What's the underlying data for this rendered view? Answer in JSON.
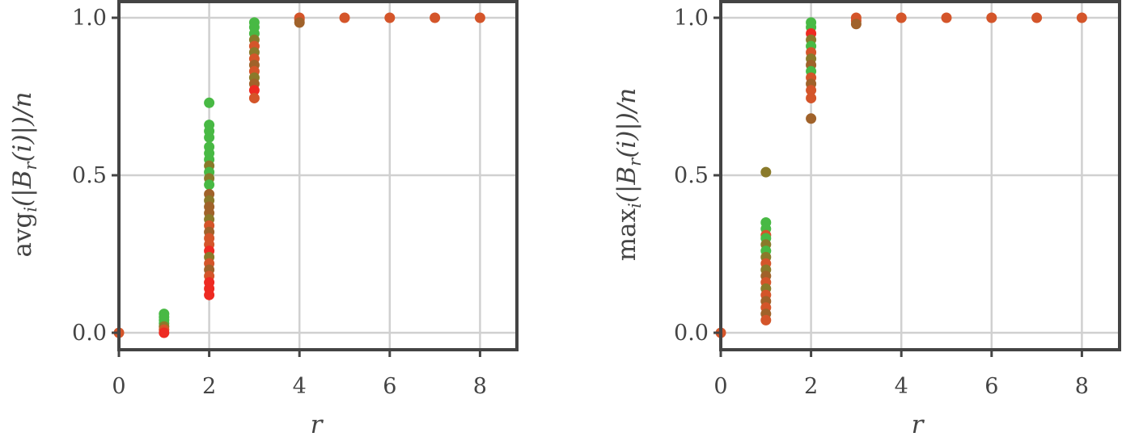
{
  "chart_data": [
    {
      "type": "scatter",
      "xlabel": "r",
      "ylabel": "avg_i(|B_r(i)|)/n",
      "ylabel_parts": {
        "pre": "avg",
        "sub1": "i",
        "mid": "(|B",
        "sub2": "r",
        "post": "(i)|)/n"
      },
      "xticks": [
        "0",
        "2",
        "4",
        "6",
        "8"
      ],
      "yticks": [
        "0.0",
        "0.5",
        "1.0"
      ],
      "xlim": [
        0,
        8.85
      ],
      "ylim": [
        -0.055,
        1.045
      ],
      "grid": true,
      "colors": {
        "green": "#48b944",
        "olive": "#8a7a2a",
        "brown": "#a0622a",
        "orange": "#d4552a",
        "red": "#ee2a22",
        "axis": "#444444",
        "grid": "#d0d0d0"
      },
      "points": [
        {
          "x": 0,
          "y": 0.0,
          "c": "orange"
        },
        {
          "x": 1,
          "y": 0.06,
          "c": "green"
        },
        {
          "x": 1,
          "y": 0.05,
          "c": "green"
        },
        {
          "x": 1,
          "y": 0.04,
          "c": "green"
        },
        {
          "x": 1,
          "y": 0.03,
          "c": "green"
        },
        {
          "x": 1,
          "y": 0.02,
          "c": "olive"
        },
        {
          "x": 1,
          "y": 0.01,
          "c": "orange"
        },
        {
          "x": 1,
          "y": 0.0,
          "c": "red"
        },
        {
          "x": 2,
          "y": 0.73,
          "c": "green"
        },
        {
          "x": 2,
          "y": 0.66,
          "c": "green"
        },
        {
          "x": 2,
          "y": 0.64,
          "c": "green"
        },
        {
          "x": 2,
          "y": 0.62,
          "c": "green"
        },
        {
          "x": 2,
          "y": 0.59,
          "c": "green"
        },
        {
          "x": 2,
          "y": 0.57,
          "c": "green"
        },
        {
          "x": 2,
          "y": 0.55,
          "c": "green"
        },
        {
          "x": 2,
          "y": 0.53,
          "c": "olive"
        },
        {
          "x": 2,
          "y": 0.51,
          "c": "green"
        },
        {
          "x": 2,
          "y": 0.49,
          "c": "olive"
        },
        {
          "x": 2,
          "y": 0.47,
          "c": "green"
        },
        {
          "x": 2,
          "y": 0.44,
          "c": "brown"
        },
        {
          "x": 2,
          "y": 0.42,
          "c": "olive"
        },
        {
          "x": 2,
          "y": 0.4,
          "c": "brown"
        },
        {
          "x": 2,
          "y": 0.38,
          "c": "brown"
        },
        {
          "x": 2,
          "y": 0.36,
          "c": "olive"
        },
        {
          "x": 2,
          "y": 0.34,
          "c": "orange"
        },
        {
          "x": 2,
          "y": 0.32,
          "c": "brown"
        },
        {
          "x": 2,
          "y": 0.3,
          "c": "orange"
        },
        {
          "x": 2,
          "y": 0.28,
          "c": "orange"
        },
        {
          "x": 2,
          "y": 0.26,
          "c": "red"
        },
        {
          "x": 2,
          "y": 0.24,
          "c": "olive"
        },
        {
          "x": 2,
          "y": 0.22,
          "c": "orange"
        },
        {
          "x": 2,
          "y": 0.2,
          "c": "brown"
        },
        {
          "x": 2,
          "y": 0.18,
          "c": "orange"
        },
        {
          "x": 2,
          "y": 0.16,
          "c": "red"
        },
        {
          "x": 2,
          "y": 0.14,
          "c": "red"
        },
        {
          "x": 2,
          "y": 0.12,
          "c": "red"
        },
        {
          "x": 3,
          "y": 0.985,
          "c": "green"
        },
        {
          "x": 3,
          "y": 0.97,
          "c": "green"
        },
        {
          "x": 3,
          "y": 0.95,
          "c": "green"
        },
        {
          "x": 3,
          "y": 0.93,
          "c": "olive"
        },
        {
          "x": 3,
          "y": 0.91,
          "c": "orange"
        },
        {
          "x": 3,
          "y": 0.89,
          "c": "olive"
        },
        {
          "x": 3,
          "y": 0.87,
          "c": "orange"
        },
        {
          "x": 3,
          "y": 0.85,
          "c": "brown"
        },
        {
          "x": 3,
          "y": 0.83,
          "c": "orange"
        },
        {
          "x": 3,
          "y": 0.81,
          "c": "olive"
        },
        {
          "x": 3,
          "y": 0.79,
          "c": "brown"
        },
        {
          "x": 3,
          "y": 0.77,
          "c": "red"
        },
        {
          "x": 3,
          "y": 0.745,
          "c": "orange"
        },
        {
          "x": 4,
          "y": 1.0,
          "c": "orange"
        },
        {
          "x": 4,
          "y": 0.995,
          "c": "orange"
        },
        {
          "x": 4,
          "y": 0.985,
          "c": "brown"
        },
        {
          "x": 5,
          "y": 1.0,
          "c": "orange"
        },
        {
          "x": 6,
          "y": 1.0,
          "c": "orange"
        },
        {
          "x": 7,
          "y": 1.0,
          "c": "orange"
        },
        {
          "x": 8,
          "y": 1.0,
          "c": "orange"
        }
      ]
    },
    {
      "type": "scatter",
      "xlabel": "r",
      "ylabel": "max_i(|B_r(i)|)/n",
      "ylabel_parts": {
        "pre": "max",
        "sub1": "i",
        "mid": "(|B",
        "sub2": "r",
        "post": "(i)|)/n"
      },
      "xticks": [
        "0",
        "2",
        "4",
        "6",
        "8"
      ],
      "yticks": [
        "0.0",
        "0.5",
        "1.0"
      ],
      "xlim": [
        0,
        8.85
      ],
      "ylim": [
        -0.055,
        1.045
      ],
      "grid": true,
      "colors": {
        "green": "#48b944",
        "olive": "#8a7a2a",
        "brown": "#a0622a",
        "orange": "#d4552a",
        "red": "#ee2a22",
        "axis": "#444444",
        "grid": "#d0d0d0"
      },
      "points": [
        {
          "x": 0,
          "y": 0.0,
          "c": "orange"
        },
        {
          "x": 1,
          "y": 0.51,
          "c": "olive"
        },
        {
          "x": 1,
          "y": 0.35,
          "c": "green"
        },
        {
          "x": 1,
          "y": 0.33,
          "c": "green"
        },
        {
          "x": 1,
          "y": 0.31,
          "c": "orange"
        },
        {
          "x": 1,
          "y": 0.3,
          "c": "green"
        },
        {
          "x": 1,
          "y": 0.28,
          "c": "olive"
        },
        {
          "x": 1,
          "y": 0.26,
          "c": "green"
        },
        {
          "x": 1,
          "y": 0.24,
          "c": "olive"
        },
        {
          "x": 1,
          "y": 0.22,
          "c": "orange"
        },
        {
          "x": 1,
          "y": 0.2,
          "c": "olive"
        },
        {
          "x": 1,
          "y": 0.18,
          "c": "brown"
        },
        {
          "x": 1,
          "y": 0.16,
          "c": "orange"
        },
        {
          "x": 1,
          "y": 0.14,
          "c": "olive"
        },
        {
          "x": 1,
          "y": 0.12,
          "c": "orange"
        },
        {
          "x": 1,
          "y": 0.1,
          "c": "brown"
        },
        {
          "x": 1,
          "y": 0.08,
          "c": "orange"
        },
        {
          "x": 1,
          "y": 0.06,
          "c": "brown"
        },
        {
          "x": 1,
          "y": 0.04,
          "c": "orange"
        },
        {
          "x": 2,
          "y": 0.985,
          "c": "green"
        },
        {
          "x": 2,
          "y": 0.97,
          "c": "green"
        },
        {
          "x": 2,
          "y": 0.95,
          "c": "red"
        },
        {
          "x": 2,
          "y": 0.93,
          "c": "olive"
        },
        {
          "x": 2,
          "y": 0.91,
          "c": "green"
        },
        {
          "x": 2,
          "y": 0.89,
          "c": "orange"
        },
        {
          "x": 2,
          "y": 0.87,
          "c": "olive"
        },
        {
          "x": 2,
          "y": 0.85,
          "c": "brown"
        },
        {
          "x": 2,
          "y": 0.83,
          "c": "green"
        },
        {
          "x": 2,
          "y": 0.81,
          "c": "orange"
        },
        {
          "x": 2,
          "y": 0.79,
          "c": "brown"
        },
        {
          "x": 2,
          "y": 0.77,
          "c": "orange"
        },
        {
          "x": 2,
          "y": 0.745,
          "c": "orange"
        },
        {
          "x": 2,
          "y": 0.68,
          "c": "brown"
        },
        {
          "x": 3,
          "y": 1.0,
          "c": "orange"
        },
        {
          "x": 3,
          "y": 0.99,
          "c": "orange"
        },
        {
          "x": 3,
          "y": 0.98,
          "c": "brown"
        },
        {
          "x": 4,
          "y": 1.0,
          "c": "orange"
        },
        {
          "x": 5,
          "y": 1.0,
          "c": "orange"
        },
        {
          "x": 6,
          "y": 1.0,
          "c": "orange"
        },
        {
          "x": 7,
          "y": 1.0,
          "c": "orange"
        },
        {
          "x": 8,
          "y": 1.0,
          "c": "orange"
        }
      ]
    }
  ]
}
